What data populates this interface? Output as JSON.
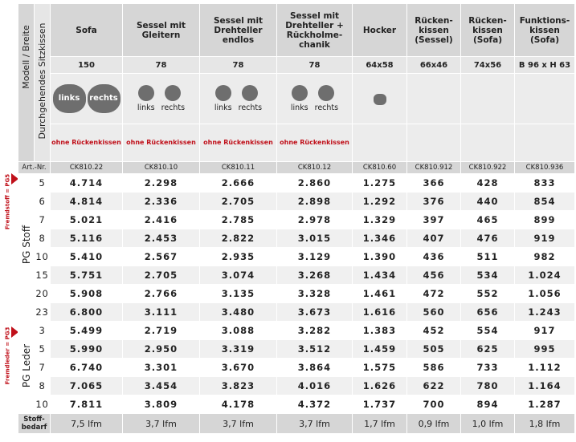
{
  "vertical": {
    "model_label": "Modell / Breite",
    "cushion_label": "Durchgehendes Sitzkissen",
    "group1": "PG Stoff",
    "group1_note": "Fremdstoff = PG5",
    "group2": "PG Leder",
    "group2_note": "Fremdleder = PG3"
  },
  "columns": [
    {
      "title": "Sofa",
      "size": "150",
      "article": "CK810.22",
      "shape": "sofa",
      "shape_labels": [
        "links",
        "rechts"
      ],
      "cushion_note": "ohne Rückenkissen"
    },
    {
      "title": "Sessel mit Gleitern",
      "size": "78",
      "article": "CK810.10",
      "shape": "pair",
      "shape_labels": [
        "links",
        "rechts"
      ],
      "cushion_note": "ohne Rückenkissen"
    },
    {
      "title": "Sessel mit Drehteller endlos",
      "size": "78",
      "article": "CK810.11",
      "shape": "pair",
      "shape_labels": [
        "links",
        "rechts"
      ],
      "cushion_note": "ohne Rückenkissen"
    },
    {
      "title": "Sessel mit Drehteller + Rückholme-chanik",
      "size": "78",
      "article": "CK810.12",
      "shape": "pair",
      "shape_labels": [
        "links",
        "rechts"
      ],
      "cushion_note": "ohne Rückenkissen"
    },
    {
      "title": "Hocker",
      "size": "64x58",
      "article": "CK810.60",
      "shape": "single",
      "shape_labels": [],
      "cushion_note": ""
    },
    {
      "title": "Rücken-kissen (Sessel)",
      "size": "66x46",
      "article": "CK810.912",
      "shape": "none",
      "shape_labels": [],
      "cushion_note": ""
    },
    {
      "title": "Rücken-kissen (Sofa)",
      "size": "74x56",
      "article": "CK810.922",
      "shape": "none",
      "shape_labels": [],
      "cushion_note": ""
    },
    {
      "title": "Funktions-kissen (Sofa)",
      "size": "B 96 x H 63",
      "article": "CK810.936",
      "shape": "none",
      "shape_labels": [],
      "cushion_note": ""
    }
  ],
  "article_label": "Art.-Nr.",
  "rows_stoff": [
    {
      "pg": "5",
      "prices": [
        "4.714",
        "2.298",
        "2.666",
        "2.860",
        "1.275",
        "366",
        "428",
        "833"
      ]
    },
    {
      "pg": "6",
      "prices": [
        "4.814",
        "2.336",
        "2.705",
        "2.898",
        "1.292",
        "376",
        "440",
        "854"
      ]
    },
    {
      "pg": "7",
      "prices": [
        "5.021",
        "2.416",
        "2.785",
        "2.978",
        "1.329",
        "397",
        "465",
        "899"
      ]
    },
    {
      "pg": "8",
      "prices": [
        "5.116",
        "2.453",
        "2.822",
        "3.015",
        "1.346",
        "407",
        "476",
        "919"
      ]
    },
    {
      "pg": "10",
      "prices": [
        "5.410",
        "2.567",
        "2.935",
        "3.129",
        "1.390",
        "436",
        "511",
        "982"
      ]
    },
    {
      "pg": "15",
      "prices": [
        "5.751",
        "2.705",
        "3.074",
        "3.268",
        "1.434",
        "456",
        "534",
        "1.024"
      ]
    },
    {
      "pg": "20",
      "prices": [
        "5.908",
        "2.766",
        "3.135",
        "3.328",
        "1.461",
        "472",
        "552",
        "1.056"
      ]
    },
    {
      "pg": "23",
      "prices": [
        "6.800",
        "3.111",
        "3.480",
        "3.673",
        "1.616",
        "560",
        "656",
        "1.243"
      ]
    }
  ],
  "rows_leder": [
    {
      "pg": "3",
      "prices": [
        "5.499",
        "2.719",
        "3.088",
        "3.282",
        "1.383",
        "452",
        "554",
        "917"
      ]
    },
    {
      "pg": "5",
      "prices": [
        "5.990",
        "2.950",
        "3.319",
        "3.512",
        "1.459",
        "505",
        "625",
        "995"
      ]
    },
    {
      "pg": "7",
      "prices": [
        "6.740",
        "3.301",
        "3.670",
        "3.864",
        "1.575",
        "586",
        "733",
        "1.112"
      ]
    },
    {
      "pg": "8",
      "prices": [
        "7.065",
        "3.454",
        "3.823",
        "4.016",
        "1.626",
        "622",
        "780",
        "1.164"
      ]
    },
    {
      "pg": "10",
      "prices": [
        "7.811",
        "3.809",
        "4.178",
        "4.372",
        "1.737",
        "700",
        "894",
        "1.287"
      ]
    }
  ],
  "stoff": {
    "label": "Stoff-bedarf",
    "values": [
      "7,5 lfm",
      "3,7 lfm",
      "3,7 lfm",
      "3,7 lfm",
      "1,7 lfm",
      "0,9 lfm",
      "1,0 lfm",
      "1,8 lfm"
    ]
  },
  "colors": {
    "accent": "#c0101a",
    "header": "#d6d6d6",
    "blob": "#6e6e6e"
  }
}
